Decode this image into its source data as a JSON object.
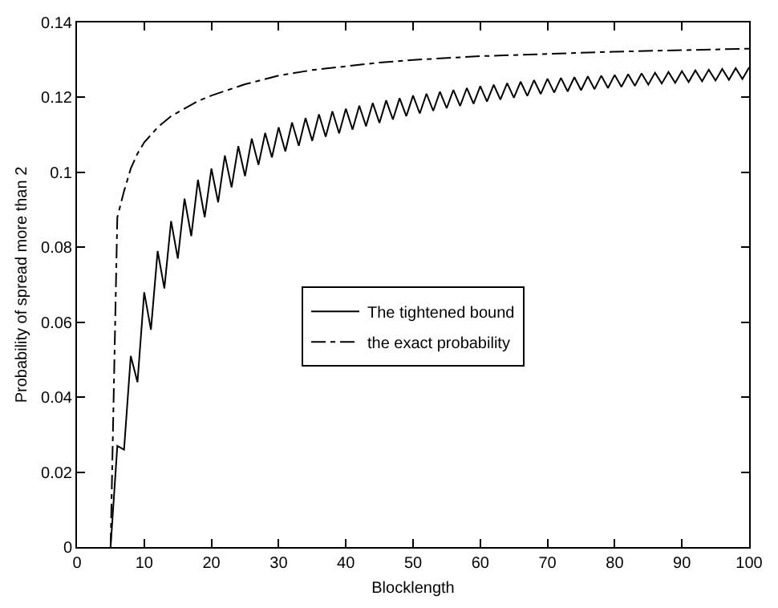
{
  "chart_data": {
    "type": "line",
    "xlabel": "Blocklength",
    "ylabel": "Probability of spread more than 2",
    "xlim": [
      0,
      100
    ],
    "xticks": [
      0,
      10,
      20,
      30,
      40,
      50,
      60,
      70,
      80,
      90,
      100
    ],
    "ylim": [
      0,
      0.14
    ],
    "yticks": [
      0,
      0.02,
      0.04,
      0.06,
      0.08,
      0.1,
      0.12,
      0.14
    ],
    "grid": false,
    "legend": "center",
    "marker": "none",
    "series": [
      {
        "name": "The tightened bound",
        "color": "#000000",
        "line_style": "solid",
        "x": [
          5,
          6,
          7,
          8,
          9,
          10,
          11,
          12,
          13,
          14,
          15,
          16,
          17,
          18,
          19,
          20,
          21,
          22,
          23,
          24,
          25,
          26,
          27,
          28,
          29,
          30,
          31,
          32,
          33,
          34,
          35,
          36,
          37,
          38,
          39,
          40,
          41,
          42,
          43,
          44,
          45,
          46,
          47,
          48,
          49,
          50,
          51,
          52,
          53,
          54,
          55,
          56,
          57,
          58,
          59,
          60,
          61,
          62,
          63,
          64,
          65,
          66,
          67,
          68,
          69,
          70,
          71,
          72,
          73,
          74,
          75,
          76,
          77,
          78,
          79,
          80,
          81,
          82,
          83,
          84,
          85,
          86,
          87,
          88,
          89,
          90,
          91,
          92,
          93,
          94,
          95,
          96,
          97,
          98,
          99,
          100
        ],
        "values": [
          0,
          0.027,
          0.026,
          0.051,
          0.044,
          0.068,
          0.058,
          0.079,
          0.069,
          0.087,
          0.077,
          0.093,
          0.083,
          0.098,
          0.088,
          0.101,
          0.092,
          0.1045,
          0.096,
          0.107,
          0.099,
          0.109,
          0.102,
          0.1105,
          0.104,
          0.112,
          0.1056,
          0.1133,
          0.1071,
          0.1145,
          0.1084,
          0.1155,
          0.1095,
          0.1163,
          0.1104,
          0.117,
          0.1114,
          0.1178,
          0.1123,
          0.1185,
          0.1132,
          0.1192,
          0.1141,
          0.1198,
          0.115,
          0.1205,
          0.1157,
          0.121,
          0.1164,
          0.1215,
          0.1171,
          0.122,
          0.1177,
          0.1225,
          0.1183,
          0.123,
          0.1189,
          0.1234,
          0.1194,
          0.1238,
          0.1199,
          0.1242,
          0.1204,
          0.1246,
          0.1209,
          0.125,
          0.1213,
          0.1252,
          0.1216,
          0.1254,
          0.1219,
          0.1256,
          0.1222,
          0.1258,
          0.1225,
          0.126,
          0.1228,
          0.1262,
          0.1231,
          0.1264,
          0.1234,
          0.1266,
          0.1237,
          0.1268,
          0.1239,
          0.127,
          0.1241,
          0.1272,
          0.1243,
          0.1274,
          0.1245,
          0.1276,
          0.1247,
          0.1278,
          0.1249,
          0.128
        ]
      },
      {
        "name": "the exact probability",
        "color": "#000000",
        "line_style": "dashdot",
        "x": [
          5,
          6,
          7,
          8,
          9,
          10,
          12,
          14,
          16,
          18,
          20,
          25,
          30,
          35,
          40,
          45,
          50,
          60,
          70,
          80,
          90,
          100
        ],
        "values": [
          0,
          0.088,
          0.095,
          0.101,
          0.105,
          0.108,
          0.112,
          0.115,
          0.117,
          0.119,
          0.1205,
          0.1235,
          0.1258,
          0.1273,
          0.1283,
          0.1293,
          0.13,
          0.131,
          0.1316,
          0.1322,
          0.1326,
          0.133
        ]
      }
    ]
  }
}
